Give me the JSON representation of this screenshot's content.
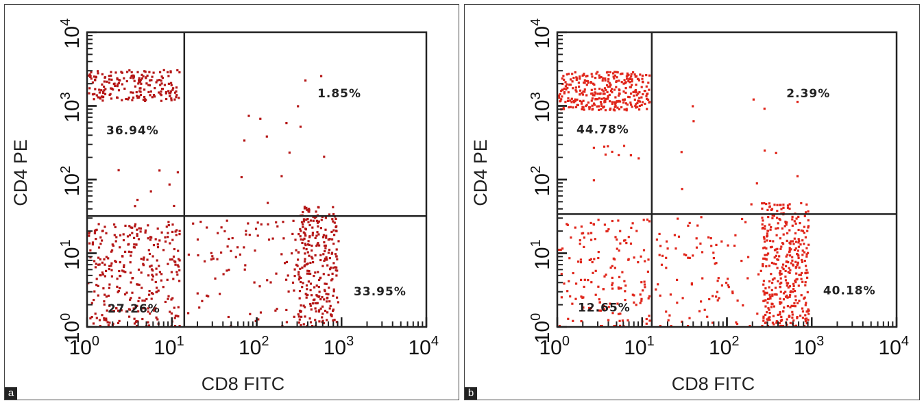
{
  "chart_data": [
    {
      "type": "scatter",
      "panel_label": "a",
      "xlabel": "CD8 FITC",
      "ylabel": "CD4 PE",
      "x_scale": "log",
      "y_scale": "log",
      "xlim": [
        1,
        10000
      ],
      "ylim": [
        1,
        10000
      ],
      "x_ticks": [
        {
          "base": "10",
          "exp": "0"
        },
        {
          "base": "10",
          "exp": "1"
        },
        {
          "base": "10",
          "exp": "2"
        },
        {
          "base": "10",
          "exp": "3"
        },
        {
          "base": "10",
          "exp": "4"
        }
      ],
      "y_ticks": [
        {
          "base": "10",
          "exp": "0"
        },
        {
          "base": "10",
          "exp": "1"
        },
        {
          "base": "10",
          "exp": "2"
        },
        {
          "base": "10",
          "exp": "3"
        },
        {
          "base": "10",
          "exp": "4"
        }
      ],
      "gate": {
        "x": 14,
        "y": 32
      },
      "point_color": "#b51717",
      "quadrants": [
        {
          "position": "upper-left",
          "label": "36.94%"
        },
        {
          "position": "upper-right",
          "label": "1.85%"
        },
        {
          "position": "lower-left",
          "label": "27.26%"
        },
        {
          "position": "lower-right",
          "label": "33.95%"
        }
      ],
      "clusters": [
        {
          "x_range": [
            1,
            12
          ],
          "y_range": [
            1200,
            3200
          ],
          "count": 190
        },
        {
          "x_range": [
            1,
            12
          ],
          "y_range": [
            1,
            28
          ],
          "count": 300
        },
        {
          "x_range": [
            300,
            900
          ],
          "y_range": [
            1,
            45
          ],
          "count": 240
        },
        {
          "x_range": [
            15,
            900
          ],
          "y_range": [
            1,
            30
          ],
          "count": 120
        },
        {
          "x_range": [
            15,
            900
          ],
          "y_range": [
            35,
            3000
          ],
          "count": 14
        },
        {
          "x_range": [
            2,
            12
          ],
          "y_range": [
            40,
            150
          ],
          "count": 8
        }
      ]
    },
    {
      "type": "scatter",
      "panel_label": "b",
      "xlabel": "CD8 FITC",
      "ylabel": "CD4 PE",
      "x_scale": "log",
      "y_scale": "log",
      "xlim": [
        1,
        10000
      ],
      "ylim": [
        1,
        10000
      ],
      "x_ticks": [
        {
          "base": "10",
          "exp": "0"
        },
        {
          "base": "10",
          "exp": "1"
        },
        {
          "base": "10",
          "exp": "2"
        },
        {
          "base": "10",
          "exp": "3"
        },
        {
          "base": "10",
          "exp": "4"
        }
      ],
      "y_ticks": [
        {
          "base": "10",
          "exp": "0"
        },
        {
          "base": "10",
          "exp": "1"
        },
        {
          "base": "10",
          "exp": "2"
        },
        {
          "base": "10",
          "exp": "3"
        },
        {
          "base": "10",
          "exp": "4"
        }
      ],
      "gate": {
        "x": 13,
        "y": 34
      },
      "point_color": "#e0261b",
      "quadrants": [
        {
          "position": "upper-left",
          "label": "44.78%"
        },
        {
          "position": "upper-right",
          "label": "2.39%"
        },
        {
          "position": "lower-left",
          "label": "12.65%"
        },
        {
          "position": "lower-right",
          "label": "40.18%"
        }
      ],
      "clusters": [
        {
          "x_range": [
            1,
            12
          ],
          "y_range": [
            900,
            3000
          ],
          "count": 320
        },
        {
          "x_range": [
            1,
            12
          ],
          "y_range": [
            1,
            30
          ],
          "count": 160
        },
        {
          "x_range": [
            250,
            900
          ],
          "y_range": [
            1,
            50
          ],
          "count": 330
        },
        {
          "x_range": [
            14,
            900
          ],
          "y_range": [
            1,
            32
          ],
          "count": 130
        },
        {
          "x_range": [
            14,
            700
          ],
          "y_range": [
            40,
            2000
          ],
          "count": 12
        },
        {
          "x_range": [
            2,
            12
          ],
          "y_range": [
            40,
            300
          ],
          "count": 10
        }
      ]
    }
  ]
}
